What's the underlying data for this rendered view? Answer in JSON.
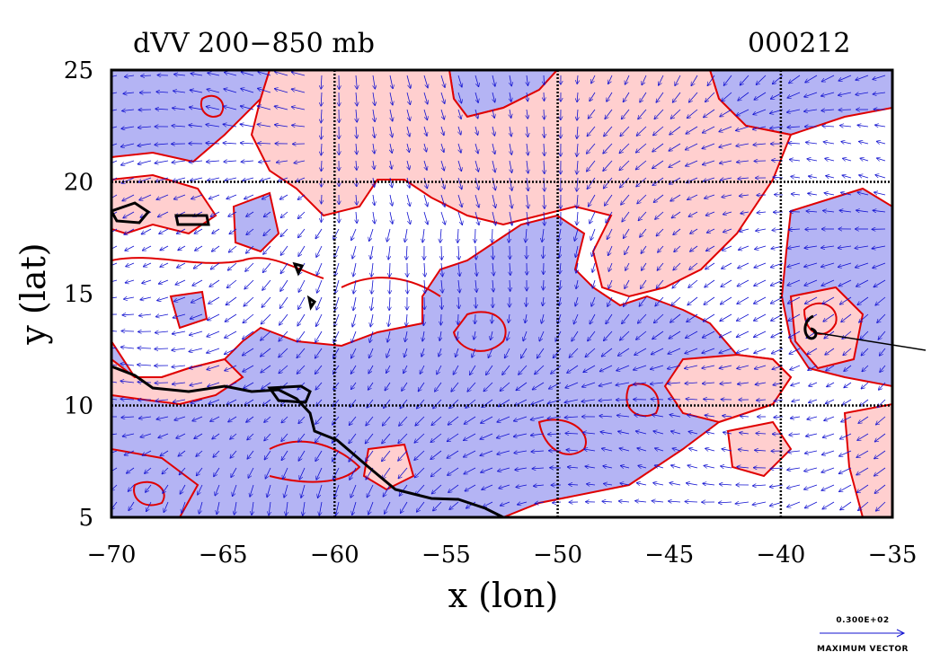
{
  "title": "dVV 200−850 mb",
  "date_code": "000212",
  "map": {
    "xlabel": "x (lon)",
    "ylabel": "y (lat)",
    "lon_range": [
      -70,
      -35
    ],
    "lat_range": [
      5,
      25
    ],
    "x_ticks": [
      "−70",
      "−65",
      "−60",
      "−55",
      "−50",
      "−45",
      "−40",
      "−35"
    ],
    "y_ticks": [
      "5",
      "10",
      "15",
      "20",
      "25"
    ],
    "grid_lon": [
      -60,
      -50,
      -40
    ],
    "grid_lat": [
      10,
      20
    ],
    "colors": {
      "positive_fill": "#ffcfcf",
      "negative_fill": "#b4b4f4",
      "contour": "#e00000",
      "vector": "#1010d0",
      "coast": "#000000"
    }
  },
  "legend": {
    "reference_value": "0.300E+02",
    "reference_label": "MAXIMUM VECTOR"
  }
}
